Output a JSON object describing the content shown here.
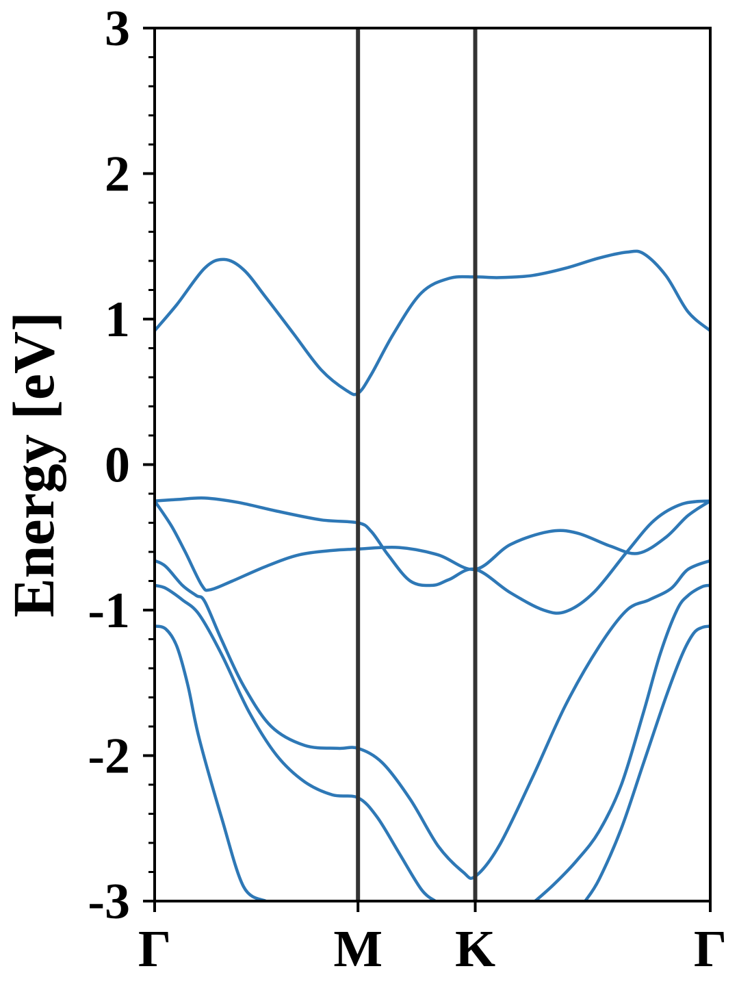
{
  "chart_data": {
    "type": "line",
    "title": "",
    "xlabel": "",
    "ylabel": "Energy [eV]",
    "ylim": [
      -3,
      3
    ],
    "y_minor_step": 0.2,
    "yticks": [
      {
        "value": 3,
        "label": "3"
      },
      {
        "value": 2,
        "label": "2"
      },
      {
        "value": 1,
        "label": "1"
      },
      {
        "value": 0,
        "label": "0"
      },
      {
        "value": -1,
        "label": "-1"
      },
      {
        "value": -2,
        "label": "-2"
      },
      {
        "value": -3,
        "label": "-3"
      }
    ],
    "xlim": [
      0,
      1
    ],
    "kpoints": [
      {
        "label": "Γ",
        "x": 0.0
      },
      {
        "label": "M",
        "x": 0.366
      },
      {
        "label": "K",
        "x": 0.577
      },
      {
        "label": "Γ",
        "x": 1.0
      }
    ],
    "grid": false,
    "legend": "none",
    "line_color": "#2e78b6",
    "kpoint_line_color": "#333333",
    "series": [
      {
        "x": [
          0,
          0.04,
          0.09,
          0.125,
          0.16,
          0.2,
          0.25,
          0.3,
          0.345,
          0.366,
          0.39,
          0.43,
          0.48,
          0.53,
          0.577,
          0.62,
          0.68,
          0.74,
          0.8,
          0.85,
          0.88,
          0.92,
          0.96,
          1.0
        ],
        "y": [
          0.92,
          1.1,
          1.35,
          1.41,
          1.34,
          1.15,
          0.9,
          0.65,
          0.51,
          0.49,
          0.62,
          0.9,
          1.18,
          1.28,
          1.29,
          1.285,
          1.3,
          1.35,
          1.42,
          1.46,
          1.45,
          1.3,
          1.05,
          0.92
        ]
      },
      {
        "x": [
          0,
          0.03,
          0.055,
          0.085,
          0.1,
          0.14,
          0.2,
          0.26,
          0.32,
          0.366,
          0.44,
          0.51,
          0.577,
          0.64,
          0.71,
          0.76,
          0.82,
          0.87,
          0.92,
          0.96,
          1.0
        ],
        "y": [
          -0.25,
          -0.42,
          -0.6,
          -0.83,
          -0.86,
          -0.8,
          -0.7,
          -0.62,
          -0.59,
          -0.58,
          -0.57,
          -0.62,
          -0.72,
          -0.55,
          -0.46,
          -0.47,
          -0.56,
          -0.61,
          -0.5,
          -0.35,
          -0.25
        ]
      },
      {
        "x": [
          0,
          0.04,
          0.09,
          0.15,
          0.22,
          0.3,
          0.366,
          0.39,
          0.42,
          0.46,
          0.5,
          0.53,
          0.577,
          0.64,
          0.7,
          0.74,
          0.79,
          0.85,
          0.9,
          0.95,
          1.0
        ],
        "y": [
          -0.25,
          -0.24,
          -0.23,
          -0.26,
          -0.32,
          -0.38,
          -0.4,
          -0.46,
          -0.62,
          -0.8,
          -0.83,
          -0.79,
          -0.72,
          -0.88,
          -1.0,
          -1.01,
          -0.88,
          -0.6,
          -0.38,
          -0.27,
          -0.25
        ]
      },
      {
        "x": [
          0,
          0.02,
          0.05,
          0.075,
          0.09,
          0.12,
          0.16,
          0.21,
          0.27,
          0.33,
          0.366,
          0.41,
          0.46,
          0.51,
          0.555,
          0.577,
          0.62,
          0.68,
          0.74,
          0.8,
          0.85,
          0.89,
          0.93,
          0.96,
          1.0
        ],
        "y": [
          -0.66,
          -0.7,
          -0.83,
          -0.9,
          -0.94,
          -1.2,
          -1.52,
          -1.8,
          -1.93,
          -1.95,
          -1.95,
          -2.05,
          -2.3,
          -2.62,
          -2.8,
          -2.83,
          -2.62,
          -2.15,
          -1.65,
          -1.25,
          -1.0,
          -0.93,
          -0.85,
          -0.72,
          -0.66
        ]
      },
      {
        "x": [
          0,
          0.02,
          0.05,
          0.08,
          0.12,
          0.17,
          0.22,
          0.27,
          0.32,
          0.366,
          0.4,
          0.44,
          0.48,
          0.505
        ],
        "y": [
          -0.83,
          -0.85,
          -0.93,
          -1.03,
          -1.3,
          -1.7,
          -2.0,
          -2.18,
          -2.27,
          -2.29,
          -2.42,
          -2.67,
          -2.92,
          -3.0
        ]
      },
      {
        "x": [
          0.685,
          0.72,
          0.76,
          0.8,
          0.84,
          0.88,
          0.91,
          0.94,
          0.96,
          0.985,
          1.0
        ],
        "y": [
          -3.0,
          -2.88,
          -2.72,
          -2.52,
          -2.2,
          -1.7,
          -1.3,
          -1.0,
          -0.9,
          -0.84,
          -0.83
        ]
      },
      {
        "x": [
          0,
          0.02,
          0.04,
          0.06,
          0.08,
          0.12,
          0.16,
          0.2
        ],
        "y": [
          -1.11,
          -1.13,
          -1.25,
          -1.52,
          -1.88,
          -2.42,
          -2.9,
          -3.0
        ]
      },
      {
        "x": [
          0.775,
          0.8,
          0.84,
          0.88,
          0.92,
          0.95,
          0.97,
          0.985,
          1.0
        ],
        "y": [
          -3.0,
          -2.85,
          -2.5,
          -2.05,
          -1.6,
          -1.3,
          -1.16,
          -1.12,
          -1.11
        ]
      }
    ]
  }
}
